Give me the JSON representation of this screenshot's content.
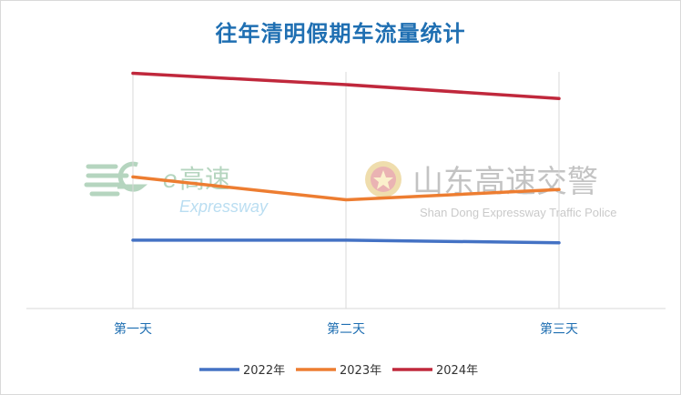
{
  "chart_data": {
    "type": "line",
    "title": "往年清明假期车流量统计",
    "categories": [
      "第一天",
      "第二天",
      "第三天"
    ],
    "series": [
      {
        "name": "2022年",
        "color": "#4472c4",
        "values": [
          54,
          54,
          52
        ]
      },
      {
        "name": "2023年",
        "color": "#ed7d31",
        "values": [
          104,
          86,
          94
        ]
      },
      {
        "name": "2024年",
        "color": "#c0283c",
        "values": [
          186,
          177,
          166
        ]
      }
    ],
    "ylim": [
      0,
      200
    ],
    "grid": "vertical",
    "legend": "bottom",
    "xlabel": "",
    "ylabel": ""
  },
  "watermarks": {
    "left_logo_cn": "高速",
    "left_logo_en": "Expressway",
    "right_logo_cn": "山东高速交警",
    "right_logo_en": "Shan Dong Expressway Traffic Police"
  },
  "colors": {
    "title": "#1f6fb2",
    "axis_labels": "#1f6fb2",
    "grid": "#d9d9d9"
  }
}
